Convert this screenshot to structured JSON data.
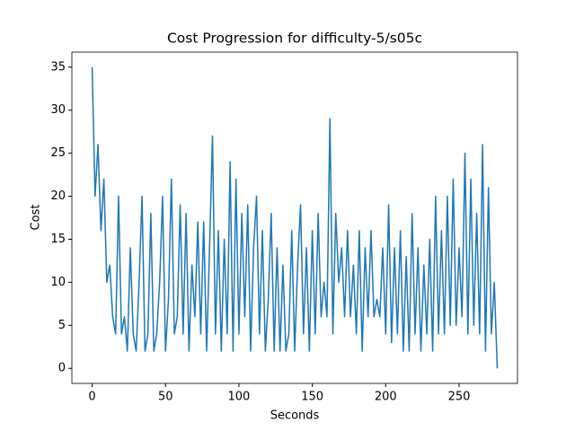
{
  "chart_data": {
    "type": "line",
    "title": "Cost Progression for difficulty-5/s05c",
    "x_label": "Seconds",
    "y_label": "Cost",
    "color": "#1f77b4",
    "x": [
      0,
      2,
      4,
      6,
      8,
      10,
      12,
      14,
      16,
      18,
      20,
      22,
      24,
      26,
      28,
      30,
      32,
      34,
      36,
      38,
      40,
      42,
      44,
      46,
      48,
      50,
      52,
      54,
      56,
      58,
      60,
      62,
      64,
      66,
      68,
      70,
      72,
      74,
      76,
      78,
      80,
      82,
      84,
      86,
      88,
      90,
      92,
      94,
      96,
      98,
      100,
      102,
      104,
      106,
      108,
      110,
      112,
      114,
      116,
      118,
      120,
      122,
      124,
      126,
      128,
      130,
      132,
      134,
      136,
      138,
      140,
      142,
      144,
      146,
      148,
      150,
      152,
      154,
      156,
      158,
      160,
      162,
      164,
      166,
      168,
      170,
      172,
      174,
      176,
      178,
      180,
      182,
      184,
      186,
      188,
      190,
      192,
      194,
      196,
      198,
      200,
      202,
      204,
      206,
      208,
      210,
      212,
      214,
      216,
      218,
      220,
      222,
      224,
      226,
      228,
      230,
      232,
      234,
      236,
      238,
      240,
      242,
      244,
      246,
      248,
      250,
      252,
      254,
      256,
      258,
      260,
      262,
      264,
      266,
      268,
      270,
      272,
      274,
      276
    ],
    "values": [
      35,
      20,
      26,
      16,
      22,
      10,
      12,
      6,
      4,
      20,
      4,
      6,
      2,
      14,
      4,
      2,
      10,
      20,
      2,
      4,
      18,
      2,
      4,
      10,
      20,
      2,
      8,
      22,
      4,
      6,
      19,
      4,
      18,
      2,
      12,
      6,
      17,
      4,
      17,
      2,
      14,
      27,
      4,
      16,
      2,
      15,
      4,
      24,
      2,
      22,
      4,
      18,
      6,
      19,
      2,
      14,
      20,
      4,
      16,
      2,
      8,
      18,
      2,
      14,
      2,
      12,
      2,
      4,
      16,
      2,
      12,
      19,
      4,
      14,
      2,
      16,
      4,
      18,
      6,
      10,
      6,
      29,
      4,
      18,
      10,
      14,
      6,
      16,
      6,
      12,
      4,
      16,
      2,
      14,
      6,
      16,
      6,
      8,
      6,
      14,
      4,
      19,
      3,
      14,
      4,
      16,
      2,
      13,
      2,
      18,
      4,
      14,
      2,
      12,
      4,
      15,
      2,
      20,
      4,
      16,
      4,
      20,
      5,
      22,
      5,
      14,
      6,
      25,
      4,
      22,
      5,
      18,
      4,
      26,
      2,
      21,
      4,
      10,
      0
    ],
    "xlim": [
      -13.8,
      289.8
    ],
    "xticks": [
      0,
      50,
      100,
      150,
      200,
      250
    ],
    "ylim": [
      -1.75,
      36.75
    ],
    "yticks": [
      0,
      5,
      10,
      15,
      20,
      25,
      30,
      35
    ]
  }
}
